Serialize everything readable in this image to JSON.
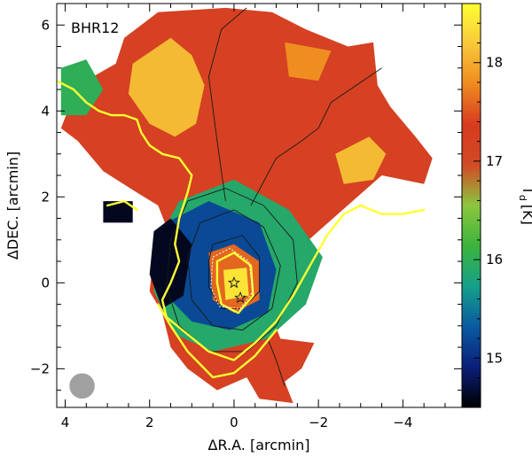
{
  "chart_data": {
    "type": "heatmap",
    "title": "",
    "panel_label": "BHR12",
    "xlabel": "ΔR.A. [arcmin]",
    "ylabel": "ΔDEC. [arcmin]",
    "colorbar_label": "T_d [K]",
    "colorbar_label_main": "T",
    "colorbar_label_sub": "d",
    "colorbar_label_unit": "[K]",
    "xlim": [
      4.2,
      -5.4
    ],
    "ylim": [
      -2.9,
      6.5
    ],
    "clim": [
      14.5,
      18.6
    ],
    "x_ticks": [
      4,
      2,
      0,
      -2,
      -4
    ],
    "x_tick_labels": [
      "4",
      "2",
      "0",
      "−2",
      "−4"
    ],
    "y_ticks": [
      -2,
      0,
      2,
      4,
      6
    ],
    "y_tick_labels": [
      "−2",
      "0",
      "2",
      "4",
      "6"
    ],
    "colorbar_ticks": [
      15,
      16,
      17,
      18
    ],
    "colorbar_tick_labels": [
      "15",
      "16",
      "17",
      "18"
    ],
    "colormap": [
      "#000000",
      "#0b1f7a",
      "#0a5aa0",
      "#15a08a",
      "#3cb43c",
      "#8cc63f",
      "#d24a26",
      "#d73b1f",
      "#ef8a20",
      "#f7c83a",
      "#ffff33"
    ],
    "regions": [
      {
        "name": "warm-envelope",
        "temp": 17.2,
        "polygon": [
          [
            3.7,
            4.6
          ],
          [
            2.8,
            5.1
          ],
          [
            2.6,
            5.7
          ],
          [
            1.8,
            6.3
          ],
          [
            0.2,
            6.4
          ],
          [
            -0.9,
            6.3
          ],
          [
            -1.7,
            5.9
          ],
          [
            -2.7,
            5.5
          ],
          [
            -3.3,
            5.6
          ],
          [
            -3.4,
            4.6
          ],
          [
            -3.7,
            4.1
          ],
          [
            -4.3,
            3.4
          ],
          [
            -4.7,
            2.9
          ],
          [
            -4.5,
            2.3
          ],
          [
            -3.5,
            2.5
          ],
          [
            -2.0,
            1.2
          ],
          [
            -1.1,
            0.4
          ],
          [
            -1.5,
            -0.2
          ],
          [
            -0.9,
            -0.8
          ],
          [
            -1.1,
            -1.3
          ],
          [
            -1.9,
            -1.4
          ],
          [
            -1.6,
            -2.0
          ],
          [
            -1.2,
            -2.3
          ],
          [
            -1.4,
            -2.8
          ],
          [
            -0.6,
            -2.7
          ],
          [
            -0.3,
            -2.2
          ],
          [
            0.4,
            -2.5
          ],
          [
            1.1,
            -2.0
          ],
          [
            1.5,
            -1.5
          ],
          [
            1.7,
            -0.7
          ],
          [
            2.0,
            -0.2
          ],
          [
            1.9,
            0.7
          ],
          [
            1.6,
            1.3
          ],
          [
            1.8,
            1.8
          ],
          [
            2.3,
            2.1
          ],
          [
            3.1,
            2.6
          ],
          [
            3.7,
            3.3
          ],
          [
            4.1,
            3.6
          ],
          [
            3.9,
            4.1
          ]
        ]
      },
      {
        "name": "hot-spot-north",
        "temp": 18.1,
        "polygon": [
          [
            2.4,
            5.1
          ],
          [
            1.5,
            5.7
          ],
          [
            1.0,
            5.3
          ],
          [
            0.7,
            4.6
          ],
          [
            0.9,
            3.7
          ],
          [
            1.4,
            3.4
          ],
          [
            2.0,
            3.7
          ],
          [
            2.5,
            4.4
          ]
        ]
      },
      {
        "name": "hot-spot-east",
        "temp": 18.1,
        "polygon": [
          [
            -2.4,
            3.0
          ],
          [
            -3.2,
            3.4
          ],
          [
            -3.6,
            3.0
          ],
          [
            -3.3,
            2.4
          ],
          [
            -2.6,
            2.3
          ]
        ]
      },
      {
        "name": "hot-spot-northeast",
        "temp": 17.8,
        "polygon": [
          [
            -1.2,
            5.6
          ],
          [
            -2.3,
            5.4
          ],
          [
            -2.0,
            4.7
          ],
          [
            -1.3,
            4.8
          ]
        ]
      },
      {
        "name": "green-tail-west",
        "temp": 16.0,
        "polygon": [
          [
            4.1,
            5.0
          ],
          [
            3.5,
            5.2
          ],
          [
            3.1,
            4.5
          ],
          [
            3.5,
            3.9
          ],
          [
            4.1,
            3.9
          ]
        ]
      },
      {
        "name": "green-ring-core",
        "temp": 15.9,
        "polygon": [
          [
            1.3,
            1.9
          ],
          [
            0.0,
            2.4
          ],
          [
            -1.3,
            1.7
          ],
          [
            -2.1,
            0.6
          ],
          [
            -1.7,
            -0.5
          ],
          [
            -0.8,
            -1.3
          ],
          [
            0.5,
            -1.6
          ],
          [
            1.4,
            -1.2
          ],
          [
            1.9,
            -0.2
          ],
          [
            1.8,
            1.0
          ]
        ]
      },
      {
        "name": "blue-cold-ring",
        "temp": 15.2,
        "polygon": [
          [
            1.6,
            1.4
          ],
          [
            0.6,
            1.9
          ],
          [
            -0.6,
            1.4
          ],
          [
            -1.0,
            0.3
          ],
          [
            -0.8,
            -0.7
          ],
          [
            0.1,
            -1.1
          ],
          [
            1.0,
            -0.9
          ],
          [
            1.7,
            -0.2
          ],
          [
            1.9,
            0.7
          ]
        ]
      },
      {
        "name": "black-cold-west",
        "temp": 14.6,
        "polygon": [
          [
            1.9,
            1.2
          ],
          [
            1.5,
            1.5
          ],
          [
            1.0,
            0.9
          ],
          [
            1.2,
            -0.3
          ],
          [
            1.7,
            -0.6
          ],
          [
            2.0,
            0.2
          ]
        ]
      },
      {
        "name": "black-patch-west",
        "temp": 14.6,
        "polygon": [
          [
            3.1,
            1.9
          ],
          [
            2.4,
            1.9
          ],
          [
            2.4,
            1.4
          ],
          [
            3.1,
            1.4
          ]
        ]
      },
      {
        "name": "core-orange",
        "temp": 17.6,
        "polygon": [
          [
            0.6,
            0.7
          ],
          [
            0.0,
            0.9
          ],
          [
            -0.6,
            0.5
          ],
          [
            -0.6,
            -0.4
          ],
          [
            0.0,
            -0.7
          ],
          [
            0.5,
            -0.4
          ]
        ]
      },
      {
        "name": "core-yellow",
        "temp": 18.4,
        "polygon": [
          [
            0.25,
            0.3
          ],
          [
            -0.3,
            0.35
          ],
          [
            -0.35,
            -0.3
          ],
          [
            0.2,
            -0.4
          ]
        ]
      }
    ],
    "yellow_contours": [
      [
        [
          4.2,
          4.7
        ],
        [
          3.8,
          4.5
        ],
        [
          3.5,
          4.2
        ],
        [
          3.2,
          4.0
        ],
        [
          2.9,
          3.9
        ],
        [
          2.6,
          3.9
        ],
        [
          2.3,
          3.8
        ],
        [
          2.2,
          3.5
        ],
        [
          2.0,
          3.2
        ],
        [
          1.7,
          3.0
        ],
        [
          1.3,
          2.9
        ],
        [
          1.0,
          2.5
        ],
        [
          1.1,
          2.1
        ],
        [
          1.3,
          1.5
        ],
        [
          1.4,
          0.9
        ],
        [
          1.3,
          0.5
        ],
        [
          1.5,
          0.0
        ],
        [
          1.7,
          -0.4
        ],
        [
          1.6,
          -0.8
        ],
        [
          1.1,
          -1.2
        ],
        [
          0.6,
          -1.6
        ],
        [
          0.0,
          -1.8
        ],
        [
          -0.5,
          -1.4
        ],
        [
          -1.0,
          -0.9
        ],
        [
          -1.4,
          -0.3
        ],
        [
          -1.8,
          0.4
        ],
        [
          -2.2,
          1.1
        ],
        [
          -2.6,
          1.6
        ],
        [
          -3.0,
          1.8
        ],
        [
          -3.5,
          1.6
        ],
        [
          -4.0,
          1.6
        ],
        [
          -4.5,
          1.7
        ]
      ],
      [
        [
          3.0,
          1.8
        ],
        [
          2.6,
          1.9
        ],
        [
          2.3,
          1.7
        ]
      ],
      [
        [
          1.8,
          -0.5
        ],
        [
          1.5,
          -1.0
        ],
        [
          1.1,
          -1.6
        ],
        [
          0.5,
          -2.2
        ],
        [
          0.0,
          -2.1
        ],
        [
          -0.5,
          -1.7
        ],
        [
          -1.0,
          -1.1
        ]
      ],
      [
        [
          0.4,
          0.5
        ],
        [
          0.0,
          0.7
        ],
        [
          -0.4,
          0.4
        ],
        [
          -0.45,
          -0.3
        ],
        [
          -0.1,
          -0.7
        ],
        [
          0.3,
          -0.5
        ],
        [
          0.4,
          0.0
        ],
        [
          0.4,
          0.5
        ]
      ]
    ],
    "black_contours": [
      [
        [
          1.1,
          1.9
        ],
        [
          0.2,
          2.2
        ],
        [
          -0.7,
          1.8
        ],
        [
          -1.4,
          1.0
        ],
        [
          -1.5,
          0.0
        ],
        [
          -1.0,
          -1.0
        ],
        [
          -0.3,
          -1.6
        ],
        [
          0.6,
          -1.6
        ],
        [
          1.3,
          -1.0
        ],
        [
          1.6,
          -0.1
        ],
        [
          1.5,
          1.0
        ],
        [
          1.1,
          1.9
        ]
      ],
      [
        [
          0.8,
          1.4
        ],
        [
          0.0,
          1.7
        ],
        [
          -0.7,
          1.3
        ],
        [
          -1.1,
          0.4
        ],
        [
          -0.9,
          -0.6
        ],
        [
          -0.2,
          -1.1
        ],
        [
          0.5,
          -1.0
        ],
        [
          1.0,
          -0.4
        ],
        [
          1.1,
          0.6
        ],
        [
          0.8,
          1.4
        ]
      ],
      [
        [
          0.5,
          0.9
        ],
        [
          -0.2,
          1.1
        ],
        [
          -0.6,
          0.6
        ],
        [
          -0.6,
          -0.2
        ],
        [
          -0.2,
          -0.6
        ],
        [
          0.3,
          -0.6
        ],
        [
          0.6,
          -0.1
        ],
        [
          0.6,
          0.5
        ],
        [
          0.5,
          0.9
        ]
      ],
      [
        [
          0.2,
          1.9
        ],
        [
          0.4,
          3.3
        ],
        [
          0.6,
          4.8
        ],
        [
          0.3,
          5.9
        ],
        [
          -0.3,
          6.4
        ]
      ],
      [
        [
          -0.4,
          1.8
        ],
        [
          -1.0,
          2.9
        ],
        [
          -1.6,
          3.3
        ],
        [
          -2.0,
          3.6
        ],
        [
          -2.3,
          4.2
        ],
        [
          -3.2,
          4.8
        ],
        [
          -3.5,
          5.0
        ]
      ],
      [
        [
          -0.8,
          -1.3
        ],
        [
          -1.0,
          -1.8
        ],
        [
          -1.2,
          -2.4
        ]
      ]
    ],
    "white_contours": [
      [
        [
          0.5,
          0.6
        ],
        [
          0.1,
          0.8
        ],
        [
          -0.35,
          0.5
        ],
        [
          -0.45,
          -0.2
        ],
        [
          -0.15,
          -0.6
        ],
        [
          0.35,
          -0.55
        ],
        [
          0.55,
          -0.1
        ],
        [
          0.5,
          0.6
        ]
      ]
    ],
    "markers": [
      {
        "type": "star",
        "x": 0.0,
        "y": 0.0
      },
      {
        "type": "star",
        "x": -0.15,
        "y": -0.35
      }
    ],
    "beam": {
      "x": 3.6,
      "y": -2.4,
      "radius_arcmin": 0.3
    }
  }
}
